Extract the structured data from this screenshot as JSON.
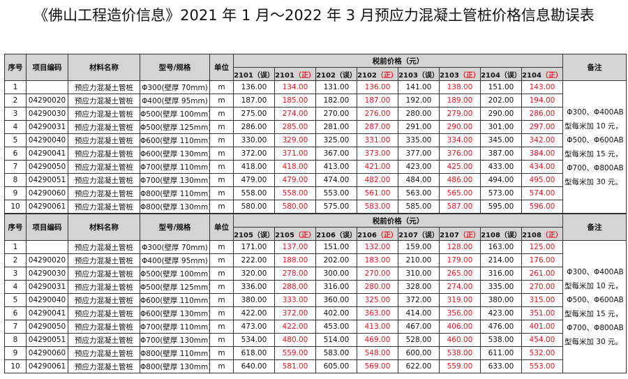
{
  "title": "《佛山工程造价信息》2021 年 1 月～2022 年 3 月预应力混凝土管桩价格信息勘误表",
  "colors": {
    "correct": "#f0141e",
    "header_bg": "#d4d4d4"
  },
  "headers": {
    "seq": "序号",
    "code": "项目编码",
    "name": "材料名称",
    "spec": "型号/规格",
    "unit": "单位",
    "price_group": "税前价格（元）",
    "remark": "备注"
  },
  "rows_common": [
    {
      "seq": "1",
      "code": "",
      "name": "预应力混凝土管桩",
      "spec": "Φ300(壁厚 70mm)",
      "unit": "m"
    },
    {
      "seq": "2",
      "code": "04290020",
      "name": "预应力混凝土管桩",
      "spec": "Φ400(壁厚 95mm)",
      "unit": "m"
    },
    {
      "seq": "3",
      "code": "04290030",
      "name": "预应力混凝土管桩",
      "spec": "Φ500(壁厚 100mm)",
      "unit": "m"
    },
    {
      "seq": "4",
      "code": "04290031",
      "name": "预应力混凝土管桩",
      "spec": "Φ500(壁厚 125mm)",
      "unit": "m"
    },
    {
      "seq": "5",
      "code": "04290040",
      "name": "预应力混凝土管桩",
      "spec": "Φ600(壁厚 110mm)",
      "unit": "m"
    },
    {
      "seq": "6",
      "code": "04290041",
      "name": "预应力混凝土管桩",
      "spec": "Φ600(壁厚 130mm)",
      "unit": "m"
    },
    {
      "seq": "7",
      "code": "04290050",
      "name": "预应力混凝土管桩",
      "spec": "Φ700(壁厚 110mm)",
      "unit": "m"
    },
    {
      "seq": "8",
      "code": "04290051",
      "name": "预应力混凝土管桩",
      "spec": "Φ700(壁厚 130mm)",
      "unit": "m"
    },
    {
      "seq": "9",
      "code": "04290060",
      "name": "预应力混凝土管桩",
      "spec": "Φ800(壁厚 110mm)",
      "unit": "m"
    },
    {
      "seq": "10",
      "code": "04290061",
      "name": "预应力混凝土管桩",
      "spec": "Φ800(壁厚 130mm)",
      "unit": "m"
    }
  ],
  "remark_lines": [
    "Φ300、Φ400AB",
    "型每米加 10 元，",
    "Φ500、Φ600AB",
    "型每米加 15 元，",
    "Φ700、Φ800AB",
    "型每米加 30 元。"
  ],
  "tables": [
    {
      "columns": [
        {
          "period": "2101",
          "tag": "（误）",
          "correct": false
        },
        {
          "period": "2101",
          "tag": "（正）",
          "correct": true
        },
        {
          "period": "2102",
          "tag": "（误）",
          "correct": false
        },
        {
          "period": "2102",
          "tag": "（正）",
          "correct": true
        },
        {
          "period": "2103",
          "tag": "（误）",
          "correct": false
        },
        {
          "period": "2103",
          "tag": "（正）",
          "correct": true
        },
        {
          "period": "2104",
          "tag": "（误）",
          "correct": false
        },
        {
          "period": "2104",
          "tag": "（正）",
          "correct": true
        }
      ],
      "prices": [
        [
          "136.00",
          "134.00",
          "131.00",
          "136.00",
          "141.00",
          "138.00",
          "151.00",
          "143.00"
        ],
        [
          "187.00",
          "185.00",
          "182.00",
          "187.00",
          "192.00",
          "189.00",
          "202.00",
          "194.00"
        ],
        [
          "275.00",
          "274.00",
          "270.00",
          "276.00",
          "280.00",
          "279.00",
          "290.00",
          "286.00"
        ],
        [
          "286.00",
          "285.00",
          "281.00",
          "287.00",
          "291.00",
          "290.00",
          "301.00",
          "297.00"
        ],
        [
          "330.00",
          "329.00",
          "325.00",
          "331.00",
          "335.00",
          "334.00",
          "345.00",
          "342.00"
        ],
        [
          "372.00",
          "371.00",
          "367.00",
          "373.00",
          "377.00",
          "376.00",
          "387.00",
          "384.00"
        ],
        [
          "418.00",
          "418.00",
          "413.00",
          "421.00",
          "423.00",
          "425.00",
          "433.00",
          "434.00"
        ],
        [
          "479.00",
          "479.00",
          "474.00",
          "482.00",
          "484.00",
          "486.00",
          "494.00",
          "495.00"
        ],
        [
          "558.00",
          "558.00",
          "553.00",
          "561.00",
          "563.00",
          "565.00",
          "573.00",
          "574.00"
        ],
        [
          "580.00",
          "580.00",
          "575.00",
          "583.00",
          "585.00",
          "587.00",
          "595.00",
          "596.00"
        ]
      ]
    },
    {
      "columns": [
        {
          "period": "2105",
          "tag": "（误）",
          "correct": false
        },
        {
          "period": "2105",
          "tag": "（正）",
          "correct": true
        },
        {
          "period": "2106",
          "tag": "（误）",
          "correct": false
        },
        {
          "period": "2106",
          "tag": "（正）",
          "correct": true
        },
        {
          "period": "2107",
          "tag": "（误）",
          "correct": false
        },
        {
          "period": "2107",
          "tag": "（正）",
          "correct": true
        },
        {
          "period": "2108",
          "tag": "（误）",
          "correct": false
        },
        {
          "period": "2108",
          "tag": "（正）",
          "correct": true
        }
      ],
      "prices": [
        [
          "171.00",
          "137.00",
          "151.00",
          "132.00",
          "159.00",
          "128.00",
          "163.00",
          "125.00"
        ],
        [
          "222.00",
          "188.00",
          "202.00",
          "183.00",
          "210.00",
          "179.00",
          "214.00",
          "176.00"
        ],
        [
          "320.00",
          "278.00",
          "300.00",
          "270.00",
          "310.00",
          "265.00",
          "316.00",
          "261.00"
        ],
        [
          "336.00",
          "288.00",
          "316.00",
          "280.00",
          "328.00",
          "274.00",
          "335.00",
          "270.00"
        ],
        [
          "380.00",
          "333.00",
          "360.00",
          "325.00",
          "372.00",
          "319.00",
          "380.00",
          "315.00"
        ],
        [
          "422.00",
          "372.00",
          "402.00",
          "363.00",
          "414.00",
          "356.00",
          "423.00",
          "351.00"
        ],
        [
          "473.00",
          "422.00",
          "453.00",
          "413.00",
          "467.00",
          "406.00",
          "476.00",
          "401.00"
        ],
        [
          "534.00",
          "480.00",
          "514.00",
          "469.00",
          "528.00",
          "460.00",
          "538.00",
          "454.00"
        ],
        [
          "618.00",
          "559.00",
          "583.00",
          "548.00",
          "600.00",
          "538.00",
          "611.00",
          "532.00"
        ],
        [
          "640.00",
          "581.00",
          "605.00",
          "569.00",
          "622.00",
          "559.00",
          "633.00",
          "553.00"
        ]
      ]
    }
  ]
}
